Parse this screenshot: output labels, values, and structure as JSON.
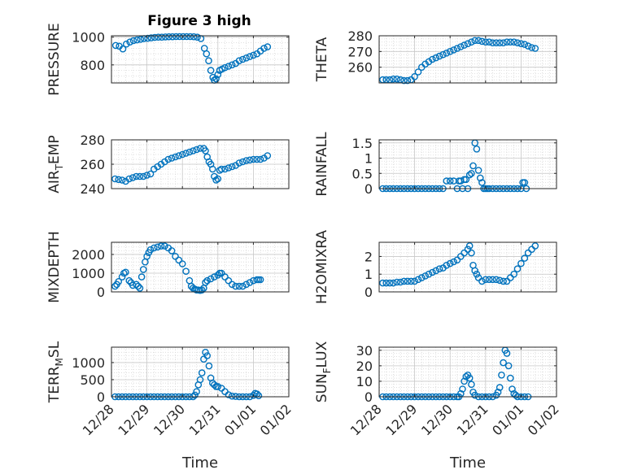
{
  "figure_title": "Figure 3 high",
  "colors": {
    "marker": "#0072BD",
    "axis": "#262626",
    "grid": "#d8d8d8",
    "plot_bg": "#ffffff"
  },
  "x_axis": {
    "label": "Time",
    "range": [
      0,
      5
    ],
    "ticks": [
      0,
      1,
      2,
      3,
      4,
      5
    ],
    "tick_labels": [
      "12/28",
      "12/29",
      "12/30",
      "12/31",
      "01/01",
      "01/02"
    ]
  },
  "chart_data": [
    {
      "id": "pressure",
      "type": "scatter",
      "ylabel": "PRESSURE",
      "ylim": [
        670,
        1010
      ],
      "yticks": [
        800,
        1000
      ],
      "x": [
        0.12,
        0.22,
        0.32,
        0.42,
        0.52,
        0.62,
        0.72,
        0.82,
        0.92,
        1.02,
        1.12,
        1.22,
        1.32,
        1.42,
        1.52,
        1.62,
        1.72,
        1.82,
        1.92,
        2.02,
        2.12,
        2.22,
        2.32,
        2.42,
        2.52,
        2.62,
        2.68,
        2.74,
        2.8,
        2.86,
        2.9,
        2.95,
        3.0,
        3.05,
        3.12,
        3.2,
        3.3,
        3.4,
        3.5,
        3.6,
        3.7,
        3.8,
        3.9,
        4.0,
        4.1,
        4.2,
        4.3,
        4.4
      ],
      "y": [
        940,
        935,
        915,
        950,
        965,
        975,
        980,
        985,
        990,
        992,
        995,
        998,
        1000,
        1000,
        1002,
        1003,
        1003,
        1004,
        1004,
        1004,
        1004,
        1004,
        1003,
        1000,
        990,
        920,
        880,
        830,
        760,
        710,
        690,
        700,
        730,
        760,
        770,
        780,
        790,
        800,
        810,
        830,
        840,
        850,
        860,
        870,
        880,
        900,
        920,
        930
      ]
    },
    {
      "id": "theta",
      "type": "scatter",
      "ylabel": "THETA",
      "ylim": [
        250,
        280
      ],
      "yticks": [
        260,
        270,
        280
      ],
      "x": [
        0.1,
        0.2,
        0.3,
        0.4,
        0.5,
        0.6,
        0.7,
        0.8,
        0.9,
        1.0,
        1.1,
        1.2,
        1.3,
        1.4,
        1.5,
        1.6,
        1.7,
        1.8,
        1.9,
        2.0,
        2.1,
        2.2,
        2.3,
        2.4,
        2.5,
        2.6,
        2.7,
        2.8,
        2.9,
        3.0,
        3.1,
        3.2,
        3.3,
        3.4,
        3.5,
        3.6,
        3.7,
        3.8,
        3.9,
        4.0,
        4.1,
        4.2,
        4.3,
        4.4
      ],
      "y": [
        252,
        252,
        252,
        252.5,
        252.5,
        252,
        251.5,
        251.5,
        252,
        254,
        257,
        260,
        262,
        263.5,
        265,
        266,
        267,
        268,
        269,
        270,
        271,
        272,
        273,
        274,
        275,
        276,
        277,
        277,
        276.5,
        276,
        276,
        275.5,
        275.5,
        275.5,
        275.5,
        276,
        276,
        276,
        275.5,
        275,
        274.5,
        273.5,
        272.5,
        272
      ]
    },
    {
      "id": "air_temp",
      "type": "scatter",
      "ylabel": "AIR_TEMP",
      "ylim": [
        240,
        280
      ],
      "yticks": [
        240,
        260,
        280
      ],
      "x": [
        0.1,
        0.2,
        0.3,
        0.4,
        0.5,
        0.6,
        0.7,
        0.8,
        0.9,
        1.0,
        1.1,
        1.2,
        1.3,
        1.4,
        1.5,
        1.6,
        1.7,
        1.8,
        1.9,
        2.0,
        2.1,
        2.2,
        2.3,
        2.4,
        2.5,
        2.6,
        2.65,
        2.7,
        2.75,
        2.8,
        2.85,
        2.9,
        2.95,
        3.0,
        3.05,
        3.1,
        3.2,
        3.3,
        3.4,
        3.5,
        3.6,
        3.7,
        3.8,
        3.9,
        4.0,
        4.1,
        4.2,
        4.3,
        4.4
      ],
      "y": [
        248,
        247.5,
        247,
        246,
        248,
        249,
        250,
        250,
        250,
        251,
        252,
        256,
        258,
        260,
        262,
        264,
        265,
        266,
        267,
        268,
        269,
        270,
        271,
        272,
        273,
        273,
        271,
        266,
        262,
        260,
        256,
        250,
        247,
        248,
        255,
        256,
        256,
        257,
        258,
        259,
        261,
        262,
        263,
        263.5,
        264,
        264,
        264,
        265,
        267
      ]
    },
    {
      "id": "rainfall",
      "type": "scatter",
      "ylabel": "RAINFALL",
      "ylim": [
        0,
        1.6
      ],
      "yticks": [
        0,
        0.5,
        1,
        1.5
      ],
      "x": [
        0.1,
        0.2,
        0.3,
        0.4,
        0.5,
        0.6,
        0.7,
        0.8,
        0.9,
        1.0,
        1.1,
        1.2,
        1.3,
        1.4,
        1.5,
        1.6,
        1.7,
        1.8,
        1.9,
        2.0,
        2.1,
        2.2,
        2.25,
        2.3,
        2.35,
        2.4,
        2.45,
        2.5,
        2.55,
        2.6,
        2.65,
        2.7,
        2.75,
        2.8,
        2.85,
        2.9,
        2.95,
        3.0,
        3.05,
        3.1,
        3.2,
        3.3,
        3.4,
        3.5,
        3.6,
        3.7,
        3.8,
        3.9,
        4.0,
        4.05,
        4.1,
        4.15
      ],
      "y": [
        0,
        0,
        0,
        0,
        0,
        0,
        0,
        0,
        0,
        0,
        0,
        0,
        0,
        0,
        0,
        0,
        0,
        0,
        0.25,
        0.25,
        0.25,
        0,
        0.25,
        0.25,
        0,
        0.3,
        0.3,
        0,
        0.45,
        0.5,
        0.75,
        1.5,
        1.3,
        0.6,
        0.35,
        0.2,
        0,
        0,
        0,
        0,
        0,
        0,
        0,
        0,
        0,
        0,
        0,
        0,
        0,
        0.2,
        0.2,
        0
      ]
    },
    {
      "id": "mixdepth",
      "type": "scatter",
      "ylabel": "MIXDEPTH",
      "ylim": [
        0,
        2650
      ],
      "yticks": [
        0,
        1000,
        2000
      ],
      "x": [
        0.1,
        0.15,
        0.2,
        0.3,
        0.35,
        0.4,
        0.5,
        0.55,
        0.6,
        0.7,
        0.75,
        0.8,
        0.85,
        0.9,
        0.95,
        1.0,
        1.05,
        1.1,
        1.2,
        1.3,
        1.4,
        1.5,
        1.6,
        1.7,
        1.8,
        1.9,
        2.0,
        2.1,
        2.2,
        2.25,
        2.3,
        2.35,
        2.4,
        2.45,
        2.5,
        2.55,
        2.6,
        2.65,
        2.7,
        2.8,
        2.9,
        3.0,
        3.05,
        3.1,
        3.2,
        3.3,
        3.4,
        3.5,
        3.6,
        3.7,
        3.8,
        3.9,
        4.0,
        4.1,
        4.15,
        4.2
      ],
      "y": [
        300,
        400,
        550,
        800,
        1000,
        1050,
        600,
        500,
        350,
        400,
        300,
        200,
        800,
        1200,
        1600,
        1900,
        2100,
        2250,
        2350,
        2400,
        2450,
        2450,
        2350,
        2200,
        1900,
        1700,
        1500,
        1100,
        600,
        300,
        200,
        150,
        100,
        100,
        80,
        100,
        200,
        500,
        600,
        700,
        800,
        900,
        1000,
        1000,
        800,
        600,
        400,
        300,
        300,
        300,
        400,
        500,
        600,
        650,
        650,
        650
      ]
    },
    {
      "id": "h2omixra",
      "type": "scatter",
      "ylabel": "H2OMIXRA",
      "ylim": [
        0,
        2.8
      ],
      "yticks": [
        0,
        1,
        2
      ],
      "x": [
        0.1,
        0.2,
        0.3,
        0.4,
        0.5,
        0.6,
        0.7,
        0.8,
        0.9,
        1.0,
        1.1,
        1.2,
        1.3,
        1.4,
        1.5,
        1.6,
        1.7,
        1.8,
        1.9,
        2.0,
        2.1,
        2.2,
        2.3,
        2.4,
        2.5,
        2.55,
        2.6,
        2.65,
        2.7,
        2.75,
        2.8,
        2.9,
        3.0,
        3.1,
        3.2,
        3.3,
        3.4,
        3.5,
        3.6,
        3.7,
        3.8,
        3.9,
        4.0,
        4.1,
        4.2,
        4.3,
        4.4
      ],
      "y": [
        0.5,
        0.5,
        0.5,
        0.5,
        0.55,
        0.55,
        0.6,
        0.6,
        0.6,
        0.6,
        0.7,
        0.8,
        0.9,
        1.0,
        1.1,
        1.2,
        1.3,
        1.35,
        1.5,
        1.6,
        1.7,
        1.8,
        2.0,
        2.2,
        2.4,
        2.6,
        2.2,
        1.5,
        1.2,
        1.0,
        0.8,
        0.6,
        0.7,
        0.7,
        0.7,
        0.7,
        0.65,
        0.6,
        0.6,
        0.8,
        1.0,
        1.3,
        1.6,
        1.9,
        2.2,
        2.4,
        2.6
      ]
    },
    {
      "id": "terr_msl",
      "type": "scatter",
      "ylabel": "TERR_MSL",
      "ylim": [
        0,
        1450
      ],
      "yticks": [
        0,
        500,
        1000
      ],
      "x": [
        0.1,
        0.2,
        0.3,
        0.4,
        0.5,
        0.6,
        0.7,
        0.8,
        0.9,
        1.0,
        1.1,
        1.2,
        1.3,
        1.4,
        1.5,
        1.6,
        1.7,
        1.8,
        1.9,
        2.0,
        2.1,
        2.2,
        2.3,
        2.35,
        2.4,
        2.45,
        2.5,
        2.55,
        2.6,
        2.65,
        2.7,
        2.75,
        2.8,
        2.85,
        2.9,
        2.95,
        3.0,
        3.1,
        3.2,
        3.3,
        3.4,
        3.5,
        3.6,
        3.7,
        3.8,
        3.9,
        4.0,
        4.05,
        4.1,
        4.15
      ],
      "y": [
        0,
        0,
        0,
        0,
        0,
        0,
        0,
        0,
        0,
        0,
        0,
        0,
        0,
        0,
        0,
        0,
        0,
        0,
        0,
        0,
        0,
        0,
        0,
        50,
        150,
        350,
        500,
        700,
        1100,
        1300,
        1200,
        900,
        550,
        400,
        350,
        300,
        300,
        250,
        150,
        60,
        20,
        10,
        0,
        0,
        0,
        0,
        40,
        100,
        80,
        30
      ]
    },
    {
      "id": "sun_flux",
      "type": "scatter",
      "ylabel": "SUN_FLUX",
      "ylim": [
        0,
        32
      ],
      "yticks": [
        0,
        10,
        20,
        30
      ],
      "x": [
        0.1,
        0.2,
        0.3,
        0.4,
        0.5,
        0.6,
        0.7,
        0.8,
        0.9,
        1.0,
        1.1,
        1.2,
        1.3,
        1.4,
        1.5,
        1.6,
        1.7,
        1.8,
        1.9,
        2.0,
        2.1,
        2.2,
        2.25,
        2.3,
        2.35,
        2.4,
        2.45,
        2.5,
        2.55,
        2.6,
        2.65,
        2.7,
        2.8,
        2.9,
        3.0,
        3.1,
        3.2,
        3.3,
        3.35,
        3.4,
        3.45,
        3.5,
        3.55,
        3.6,
        3.65,
        3.7,
        3.75,
        3.8,
        3.85,
        3.9,
        4.0,
        4.1,
        4.2
      ],
      "y": [
        0,
        0,
        0,
        0,
        0,
        0,
        0,
        0,
        0,
        0,
        0,
        0,
        0,
        0,
        0,
        0,
        0,
        0,
        0,
        0,
        0,
        0,
        0,
        2,
        5,
        10,
        13,
        14,
        12,
        8,
        3,
        1,
        0,
        0,
        0,
        0,
        0,
        1,
        3,
        6,
        14,
        22,
        30,
        28,
        20,
        12,
        5,
        2,
        1,
        0,
        0,
        0,
        0
      ]
    }
  ]
}
